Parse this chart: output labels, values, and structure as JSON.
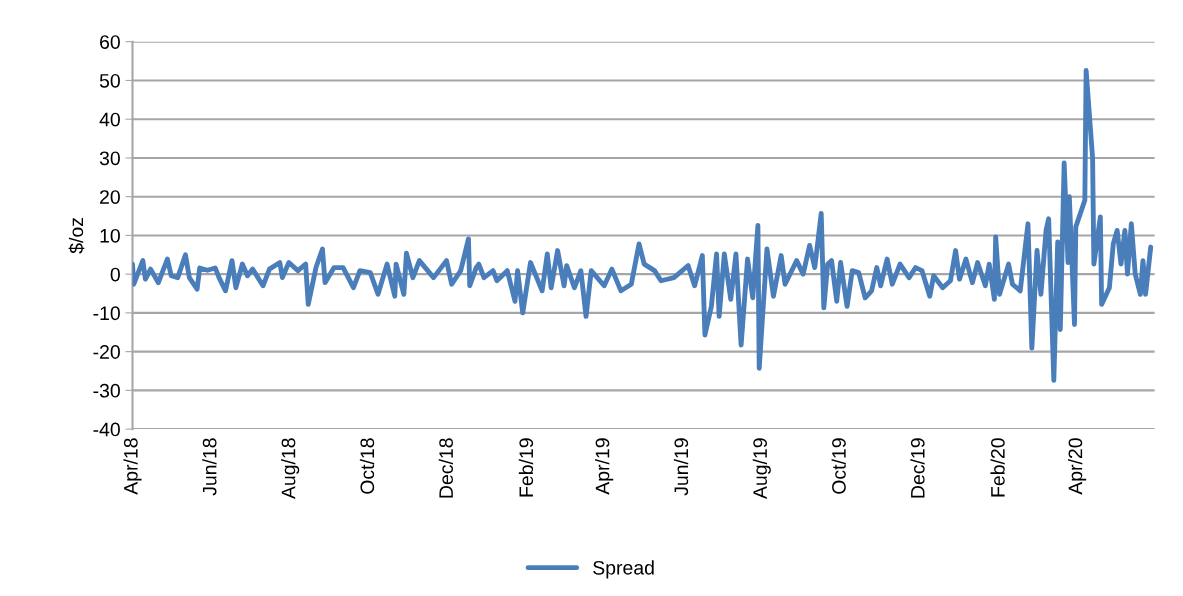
{
  "chart_data": {
    "type": "line",
    "ylabel": "$/oz",
    "legend": "bottom",
    "grid": "y",
    "line_style": "solid",
    "marker": "none",
    "xlim": [
      "2018-04-01",
      "2020-05-31"
    ],
    "xticks": [
      {
        "value": "2018-04-01",
        "label": "Apr/18"
      },
      {
        "value": "2018-06-01",
        "label": "Jun/18"
      },
      {
        "value": "2018-08-01",
        "label": "Aug/18"
      },
      {
        "value": "2018-10-01",
        "label": "Oct/18"
      },
      {
        "value": "2018-12-01",
        "label": "Dec/18"
      },
      {
        "value": "2019-02-01",
        "label": "Feb/19"
      },
      {
        "value": "2019-04-01",
        "label": "Apr/19"
      },
      {
        "value": "2019-06-01",
        "label": "Jun/19"
      },
      {
        "value": "2019-08-01",
        "label": "Aug/19"
      },
      {
        "value": "2019-10-01",
        "label": "Oct/19"
      },
      {
        "value": "2019-12-01",
        "label": "Dec/19"
      },
      {
        "value": "2020-02-01",
        "label": "Feb/20"
      },
      {
        "value": "2020-04-01",
        "label": "Apr/20"
      }
    ],
    "ylim": [
      -40,
      60
    ],
    "yticks": [
      -40,
      -30,
      -20,
      -10,
      0,
      10,
      20,
      30,
      40,
      50,
      60
    ],
    "x": [
      "2018-04-01",
      "2018-04-02",
      "2018-04-09",
      "2018-04-11",
      "2018-04-15",
      "2018-04-21",
      "2018-04-28",
      "2018-05-01",
      "2018-05-06",
      "2018-05-12",
      "2018-05-15",
      "2018-05-21",
      "2018-05-23",
      "2018-05-29",
      "2018-06-04",
      "2018-06-07",
      "2018-06-12",
      "2018-06-17",
      "2018-06-20",
      "2018-06-25",
      "2018-06-29",
      "2018-07-03",
      "2018-07-11",
      "2018-07-16",
      "2018-07-24",
      "2018-07-26",
      "2018-07-31",
      "2018-08-07",
      "2018-08-13",
      "2018-08-15",
      "2018-08-21",
      "2018-08-26",
      "2018-08-28",
      "2018-09-04",
      "2018-09-11",
      "2018-09-19",
      "2018-09-24",
      "2018-10-02",
      "2018-10-08",
      "2018-10-15",
      "2018-10-21",
      "2018-10-22",
      "2018-10-28",
      "2018-10-30",
      "2018-11-04",
      "2018-11-09",
      "2018-11-20",
      "2018-11-30",
      "2018-12-04",
      "2018-12-11",
      "2018-12-17",
      "2018-12-18",
      "2018-12-23",
      "2018-12-25",
      "2018-12-29",
      "2019-01-05",
      "2019-01-08",
      "2019-01-16",
      "2019-01-22",
      "2019-01-24",
      "2019-01-28",
      "2019-02-03",
      "2019-02-12",
      "2019-02-16",
      "2019-02-19",
      "2019-02-24",
      "2019-03-01",
      "2019-03-03",
      "2019-03-09",
      "2019-03-14",
      "2019-03-18",
      "2019-03-22",
      "2019-04-01",
      "2019-04-07",
      "2019-04-14",
      "2019-04-22",
      "2019-04-28",
      "2019-05-02",
      "2019-05-10",
      "2019-05-15",
      "2019-05-25",
      "2019-06-05",
      "2019-06-10",
      "2019-06-16",
      "2019-06-18",
      "2019-06-23",
      "2019-06-27",
      "2019-06-29",
      "2019-07-03",
      "2019-07-08",
      "2019-07-12",
      "2019-07-16",
      "2019-07-21",
      "2019-07-25",
      "2019-07-29",
      "2019-07-30",
      "2019-08-05",
      "2019-08-10",
      "2019-08-16",
      "2019-08-19",
      "2019-08-28",
      "2019-09-02",
      "2019-09-07",
      "2019-09-11",
      "2019-09-16",
      "2019-09-18",
      "2019-09-21",
      "2019-09-24",
      "2019-09-28",
      "2019-10-01",
      "2019-10-06",
      "2019-10-10",
      "2019-10-15",
      "2019-10-20",
      "2019-10-25",
      "2019-10-29",
      "2019-11-01",
      "2019-11-06",
      "2019-11-10",
      "2019-11-16",
      "2019-11-23",
      "2019-11-28",
      "2019-12-03",
      "2019-12-09",
      "2019-12-12",
      "2019-12-19",
      "2019-12-25",
      "2019-12-29",
      "2020-01-01",
      "2020-01-06",
      "2020-01-11",
      "2020-01-15",
      "2020-01-21",
      "2020-01-24",
      "2020-01-28",
      "2020-01-29",
      "2020-02-01",
      "2020-02-08",
      "2020-02-11",
      "2020-02-17",
      "2020-02-23",
      "2020-02-26",
      "2020-03-01",
      "2020-03-04",
      "2020-03-08",
      "2020-03-10",
      "2020-03-14",
      "2020-03-17",
      "2020-03-19",
      "2020-03-22",
      "2020-03-25",
      "2020-03-26",
      "2020-03-30",
      "2020-03-31",
      "2020-04-07",
      "2020-04-08",
      "2020-04-13",
      "2020-04-14",
      "2020-04-19",
      "2020-04-20",
      "2020-04-26",
      "2020-04-29",
      "2020-05-02",
      "2020-05-05",
      "2020-05-08",
      "2020-05-10",
      "2020-05-13",
      "2020-05-16",
      "2020-05-20",
      "2020-05-22",
      "2020-05-24",
      "2020-05-28"
    ],
    "series": [
      {
        "name": "Spread",
        "color": "#4a7ebb",
        "values": [
          2.6,
          -2.6,
          3.5,
          -1.3,
          1.3,
          -2.2,
          3.9,
          -0.4,
          -0.9,
          5,
          -0.9,
          -3.9,
          1.6,
          1,
          1.6,
          -0.9,
          -4.3,
          3.5,
          -3.5,
          2.6,
          -0.4,
          1.3,
          -3,
          1.3,
          3,
          -0.9,
          3,
          0.9,
          2.6,
          -7.8,
          1.7,
          6.5,
          -2.2,
          1.7,
          1.7,
          -3.5,
          0.9,
          0.4,
          -5.2,
          2.6,
          -5.7,
          2.6,
          -5.2,
          5.4,
          -0.9,
          3.5,
          -0.9,
          3.5,
          -2.6,
          0.9,
          9.1,
          -3,
          1.7,
          2.6,
          -0.9,
          0.9,
          -1.7,
          0.9,
          -7,
          0.9,
          -10,
          3,
          -4.3,
          5.2,
          -3.5,
          6.1,
          -3,
          2.2,
          -3.5,
          0.9,
          -10.9,
          0.9,
          -3,
          1.3,
          -4.3,
          -2.6,
          7.8,
          2.6,
          0.9,
          -1.7,
          -0.9,
          2.2,
          -3,
          4.8,
          -15.7,
          -8.3,
          5.2,
          -10.9,
          5.2,
          -6.5,
          5.2,
          -18.3,
          3.9,
          -6.1,
          12.6,
          -24.3,
          6.5,
          -5.7,
          4.8,
          -2.6,
          3.5,
          0,
          7.4,
          1.7,
          15.7,
          -8.7,
          2.6,
          3.5,
          -7,
          3,
          -8.3,
          0.9,
          0.4,
          -6.1,
          -4.3,
          1.7,
          -3,
          3.9,
          -2.6,
          2.6,
          -0.9,
          1.7,
          0.9,
          -5.7,
          -0.4,
          -3.5,
          -1.7,
          6.1,
          -1.3,
          3.9,
          -2.2,
          3,
          -3,
          2.6,
          -6.5,
          9.6,
          -5.2,
          2.6,
          -2.6,
          -4.3,
          13,
          -19.1,
          6.1,
          -5.2,
          11.3,
          14.3,
          -27.4,
          8.3,
          -14.3,
          28.7,
          3,
          20,
          -13,
          12.2,
          19.1,
          52.6,
          30,
          2.6,
          14.8,
          -7.8,
          -3.5,
          7.8,
          11.3,
          2.6,
          11.3,
          0,
          13,
          0,
          -5.2,
          3.5,
          -5.2,
          7
        ]
      }
    ]
  }
}
